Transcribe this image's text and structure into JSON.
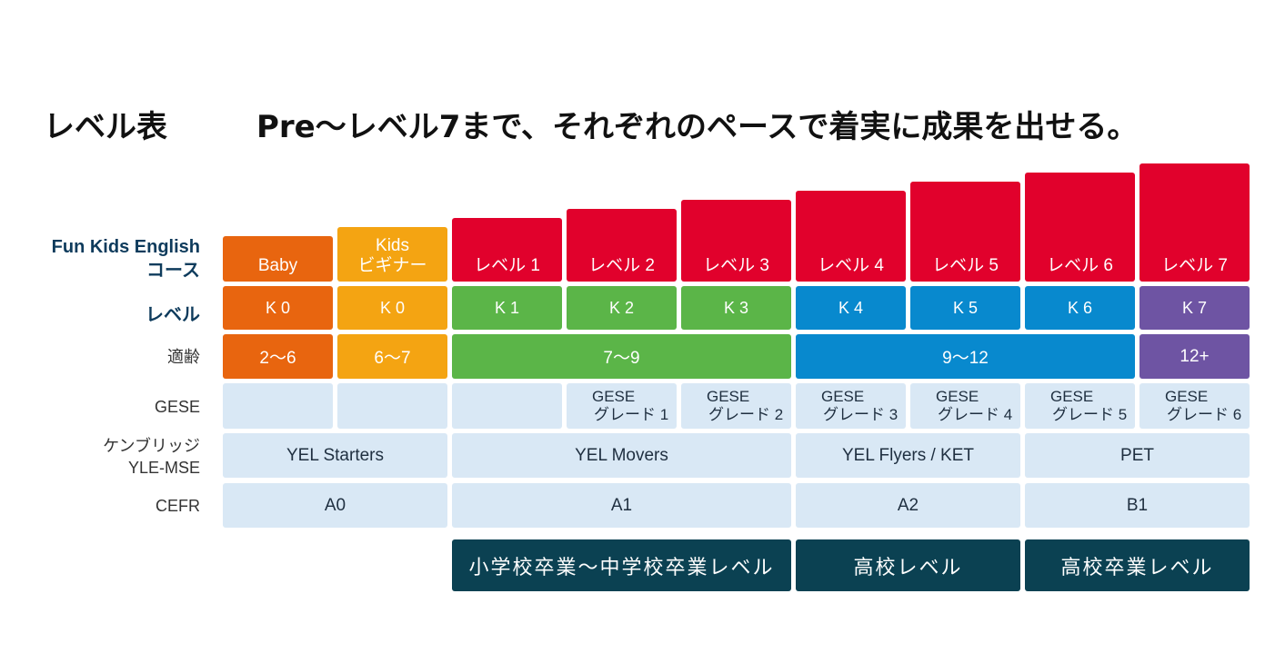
{
  "header": {
    "title": "レベル表",
    "tagline": "Pre～レベル7まで、それぞれのペースで着実に成果を出せる。"
  },
  "row_labels": {
    "course_line1": "Fun Kids English",
    "course_line2": "コース",
    "level": "レベル",
    "age": "適齢",
    "gese": "GESE",
    "cambridge_line1": "ケンブリッジ",
    "cambridge_line2": "YLE-MSE",
    "cefr": "CEFR"
  },
  "courses": [
    {
      "line1": "Baby",
      "line2": "",
      "color": "#e8650f"
    },
    {
      "line1": "Kids",
      "line2": "ビギナー",
      "color": "#f4a412"
    },
    {
      "line1": "レベル 1",
      "line2": "",
      "color": "#e1012c"
    },
    {
      "line1": "レベル 2",
      "line2": "",
      "color": "#e1012c"
    },
    {
      "line1": "レベル 3",
      "line2": "",
      "color": "#e1012c"
    },
    {
      "line1": "レベル 4",
      "line2": "",
      "color": "#e1012c"
    },
    {
      "line1": "レベル 5",
      "line2": "",
      "color": "#e1012c"
    },
    {
      "line1": "レベル 6",
      "line2": "",
      "color": "#e1012c"
    },
    {
      "line1": "レベル 7",
      "line2": "",
      "color": "#e1012c"
    }
  ],
  "levels": [
    "K 0",
    "K 0",
    "K 1",
    "K 2",
    "K 3",
    "K 4",
    "K 5",
    "K 6",
    "K 7"
  ],
  "ages": [
    "2～6",
    "6～7",
    "7～9",
    "9～12",
    "12+"
  ],
  "gese": [
    {
      "line1": "",
      "line2": ""
    },
    {
      "line1": "",
      "line2": ""
    },
    {
      "line1": "",
      "line2": ""
    },
    {
      "line1": "GESE",
      "line2": "グレード 1"
    },
    {
      "line1": "GESE",
      "line2": "グレード 2"
    },
    {
      "line1": "GESE",
      "line2": "グレード 3"
    },
    {
      "line1": "GESE",
      "line2": "グレード 4"
    },
    {
      "line1": "GESE",
      "line2": "グレード 5"
    },
    {
      "line1": "GESE",
      "line2": "グレード 6"
    }
  ],
  "cambridge": [
    "YEL Starters",
    "YEL Movers",
    "YEL Flyers / KET",
    "PET"
  ],
  "cefr": [
    "A0",
    "A1",
    "A2",
    "B1"
  ],
  "school_levels": [
    "小学校卒業～中学校卒業レベル",
    "高校レベル",
    "高校卒業レベル"
  ]
}
